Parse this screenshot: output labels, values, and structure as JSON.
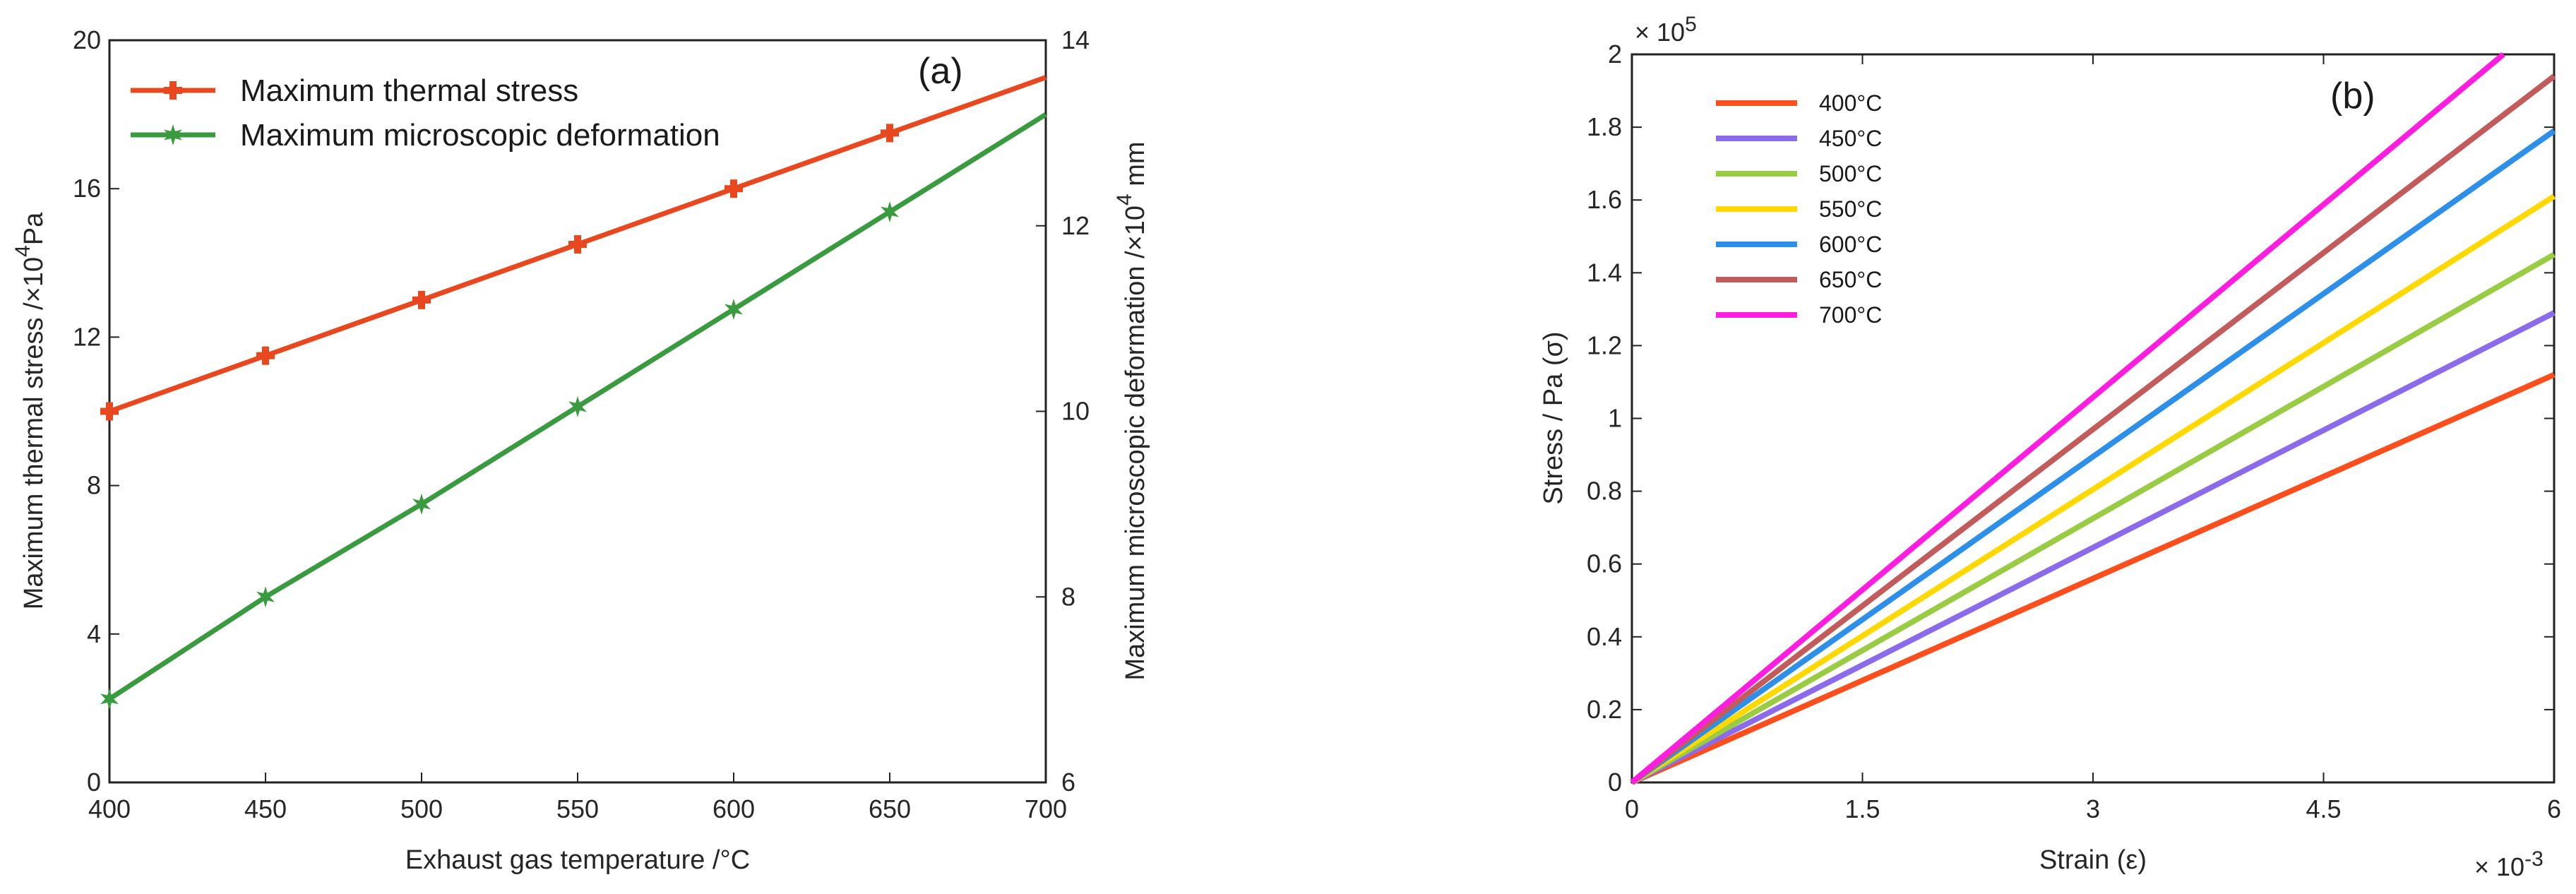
{
  "chart_data": [
    {
      "type": "line",
      "panel_label": "(a)",
      "xlabel": "Exhaust gas temperature /°C",
      "ylabel_left_prefix": "Maximum thermal stress /×10",
      "ylabel_left_exp": "4",
      "ylabel_left_unit": "Pa",
      "ylabel_right_prefix": "Maximum microscopic deformation /×10",
      "ylabel_right_exp": "4",
      "ylabel_right_unit": " mm",
      "x": [
        400,
        450,
        500,
        550,
        600,
        650,
        700
      ],
      "xlim": [
        400,
        700
      ],
      "xticks": [
        "400",
        "450",
        "500",
        "550",
        "600",
        "650",
        "700"
      ],
      "ylim_left": [
        0,
        20
      ],
      "yticks_left": [
        "0",
        "4",
        "8",
        "12",
        "16",
        "20"
      ],
      "ylim_right": [
        6,
        14
      ],
      "yticks_right": [
        "6",
        "8",
        "10",
        "12",
        "14"
      ],
      "legend_position": "top-left",
      "series": [
        {
          "name": "Maximum thermal stress",
          "axis": "left",
          "color": "#e8481f",
          "marker": "plus",
          "values": [
            10.0,
            11.5,
            13.0,
            14.5,
            16.0,
            17.5,
            19.0
          ]
        },
        {
          "name": "Maximum microscopic deformation",
          "axis": "right",
          "color": "#3a9a3f",
          "marker": "star",
          "values": [
            6.9,
            8.0,
            9.0,
            10.05,
            11.1,
            12.15,
            13.2
          ]
        }
      ]
    },
    {
      "type": "line",
      "panel_label": "(b)",
      "xlabel": "Strain (ε)",
      "ylabel": "Stress / Pa (σ)",
      "xlim": [
        0,
        6
      ],
      "xticks": [
        "0",
        "1.5",
        "3",
        "4.5",
        "6"
      ],
      "x_exponent_base": "× 10",
      "x_exponent_power": "-3",
      "ylim": [
        0,
        2
      ],
      "yticks": [
        "0",
        "0.2",
        "0.4",
        "0.6",
        "0.8",
        "1",
        "1.2",
        "1.4",
        "1.6",
        "1.8",
        "2"
      ],
      "y_exponent_base": "× 10",
      "y_exponent_power": "5",
      "legend_position": "top-left",
      "series": [
        {
          "name": "400°C",
          "color": "#fd4f1d",
          "x": [
            0,
            6
          ],
          "values": [
            0,
            1.12
          ]
        },
        {
          "name": "450°C",
          "color": "#8c6bea",
          "x": [
            0,
            6
          ],
          "values": [
            0,
            1.29
          ]
        },
        {
          "name": "500°C",
          "color": "#99cc44",
          "x": [
            0,
            6
          ],
          "values": [
            0,
            1.45
          ]
        },
        {
          "name": "550°C",
          "color": "#ffd800",
          "x": [
            0,
            6
          ],
          "values": [
            0,
            1.61
          ]
        },
        {
          "name": "600°C",
          "color": "#2e8fe8",
          "x": [
            0,
            6
          ],
          "values": [
            0,
            1.79
          ]
        },
        {
          "name": "650°C",
          "color": "#c25b5b",
          "x": [
            0,
            6
          ],
          "values": [
            0,
            1.94
          ]
        },
        {
          "name": "700°C",
          "color": "#ff1de0",
          "x": [
            0,
            5.67
          ],
          "values": [
            0,
            2.0
          ]
        }
      ]
    }
  ]
}
